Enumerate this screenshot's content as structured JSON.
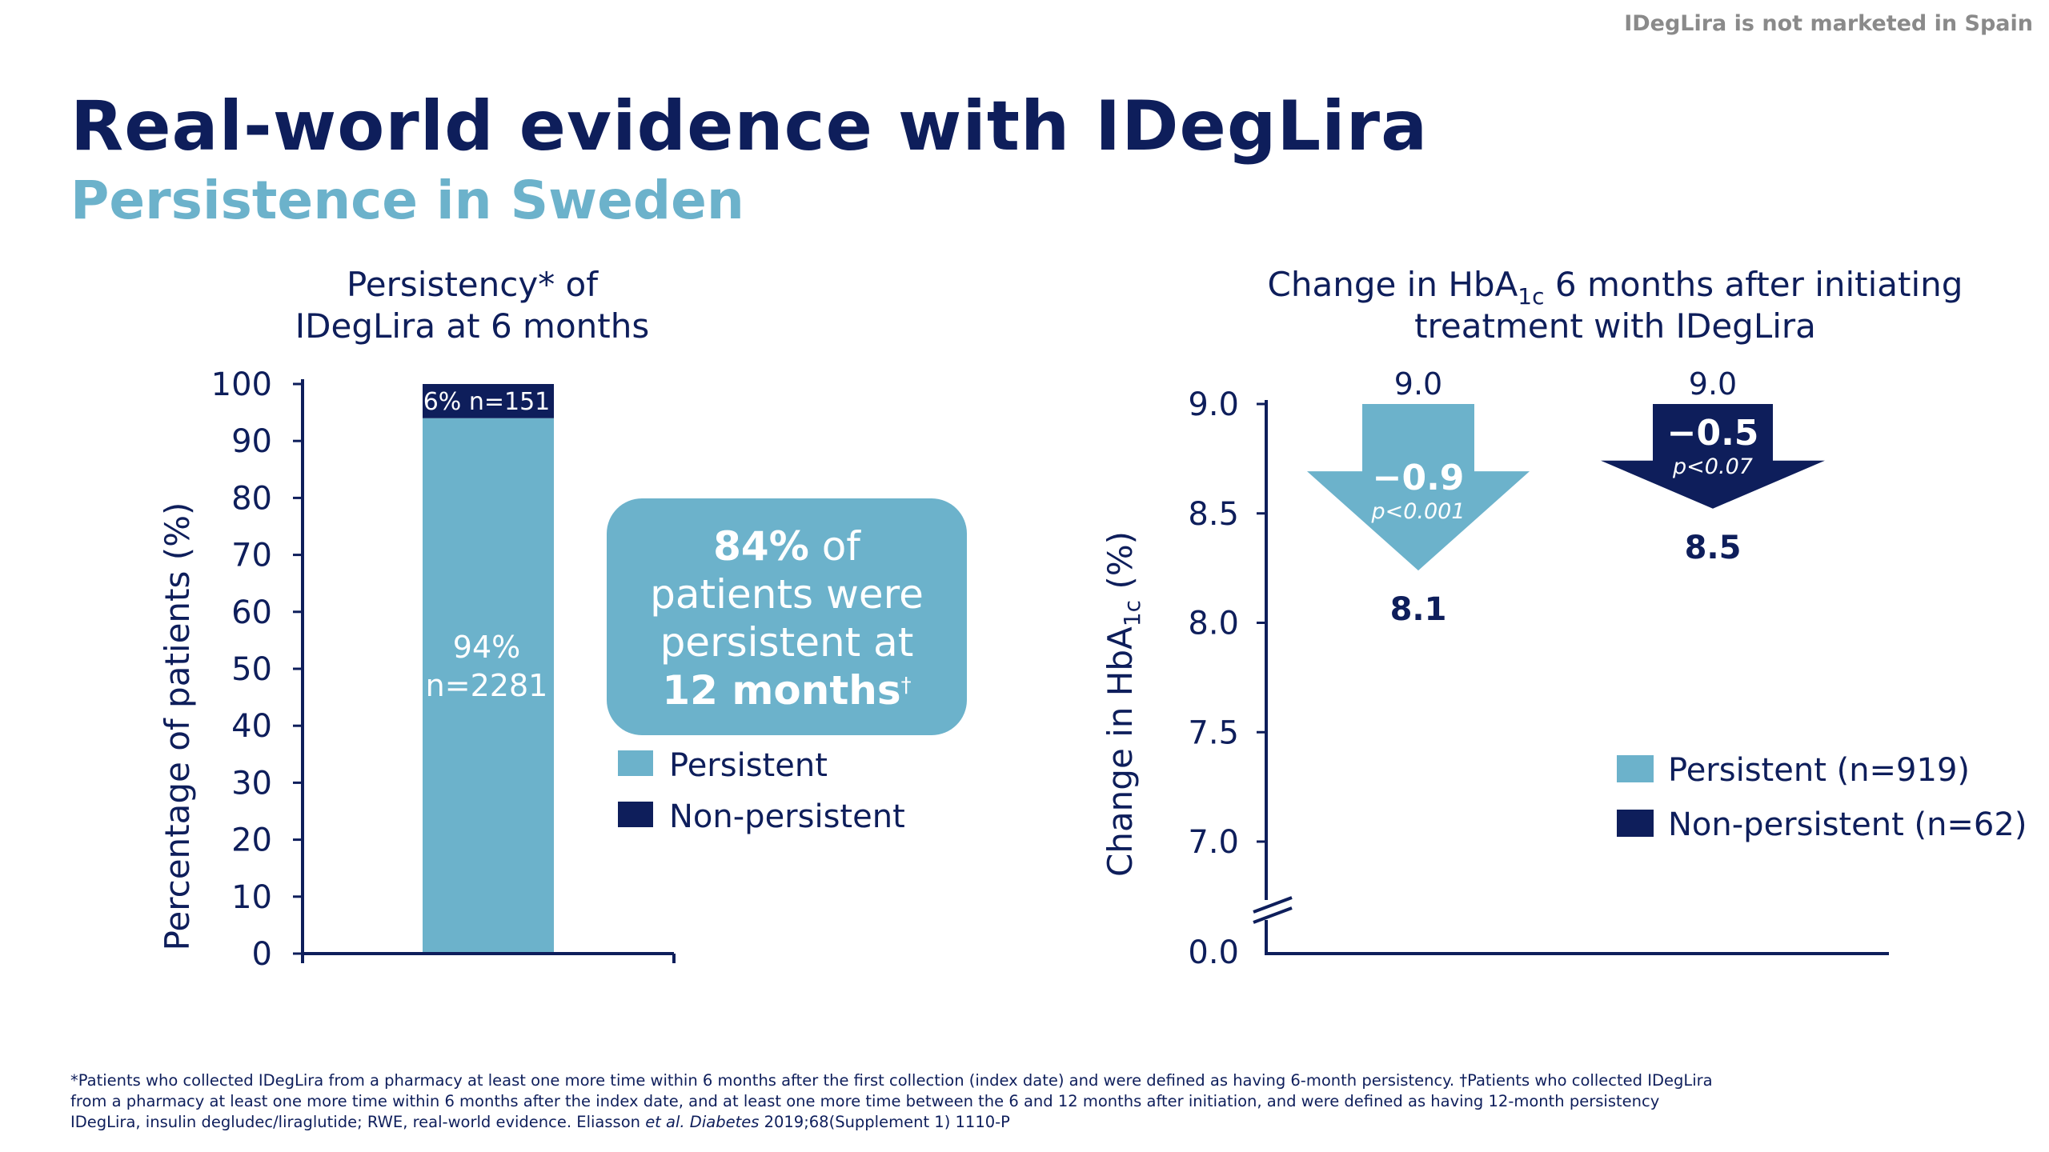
{
  "header": {
    "notice": "IDegLira is not marketed in Spain",
    "title": "Real-world evidence with IDegLira",
    "subtitle": "Persistence in Sweden"
  },
  "left_chart": {
    "title_line1": "Persistency* of",
    "title_line2": "IDegLira at 6 months",
    "ylabel": "Percentage of patients (%)",
    "top_label": "6% n=151",
    "inner_label_line1": "94%",
    "inner_label_line2": "n=2281",
    "legend": [
      "Persistent",
      "Non-persistent"
    ],
    "callout": {
      "pct": "84%",
      "line1_rest": " of",
      "line2": "patients were",
      "line3": "persistent at",
      "line4": "12 months",
      "dagger": "†"
    }
  },
  "right_chart": {
    "title_line1_pre": "Change in HbA",
    "title_sub": "1c",
    "title_line1_post": " 6 months after initiating",
    "title_line2": "treatment with IDegLira",
    "ylabel_pre": "Change in HbA",
    "ylabel_sub": "1c",
    "ylabel_post": " (%)",
    "legend": [
      "Persistent (n=919)",
      "Non-persistent (n=62)"
    ],
    "arrows": [
      {
        "start_label": "9.0",
        "change_label": "−0.9",
        "p_label": "p<0.001",
        "end_label": "8.1"
      },
      {
        "start_label": "9.0",
        "change_label": "−0.5",
        "p_label": "p<0.07",
        "end_label": "8.5"
      }
    ]
  },
  "chart_data": [
    {
      "type": "bar",
      "stacked": true,
      "categories": [
        "IDegLira at 6 months"
      ],
      "series": [
        {
          "name": "Persistent",
          "values": [
            94
          ],
          "color": "#6cb2cb"
        },
        {
          "name": "Non-persistent",
          "values": [
            6
          ],
          "color": "#0e1e5b"
        }
      ],
      "ylim": [
        0,
        100
      ],
      "yticks": [
        "0",
        "10",
        "20",
        "30",
        "40",
        "50",
        "60",
        "70",
        "80",
        "90",
        "100"
      ],
      "ylabel": "Percentage of patients (%)"
    },
    {
      "type": "bar",
      "categories": [
        "Persistent (n=919)",
        "Non-persistent (n=62)"
      ],
      "series": [
        {
          "name": "Persistent (n=919)",
          "start": 9.0,
          "end": 8.1,
          "change": -0.9,
          "color": "#6cb2cb"
        },
        {
          "name": "Non-persistent (n=62)",
          "start": 9.0,
          "end": 8.5,
          "change": -0.5,
          "color": "#0e1e5b"
        }
      ],
      "ylim": [
        7.0,
        9.0
      ],
      "axis_break": true,
      "yticks": [
        "0.0",
        "7.0",
        "7.5",
        "8.0",
        "8.5",
        "9.0"
      ]
    }
  ],
  "footnotes": {
    "line1": "*Patients who collected IDegLira from a pharmacy at least one more time within 6 months after the first collection (index date) and were defined as having 6-month persistency. †Patients who collected IDegLira",
    "line2": "from a pharmacy at least one more time within 6 months after the index date, and at least one more time between the 6 and 12 months after initiation, and were defined as having 12-month persistency",
    "line3_pre": "IDegLira, insulin degludec/liraglutide; RWE, real-world evidence. Eliasson ",
    "line3_etal": "et al.",
    "line3_journal": " Diabetes",
    "line3_post": " 2019;68(Supplement 1) 1110-P"
  }
}
